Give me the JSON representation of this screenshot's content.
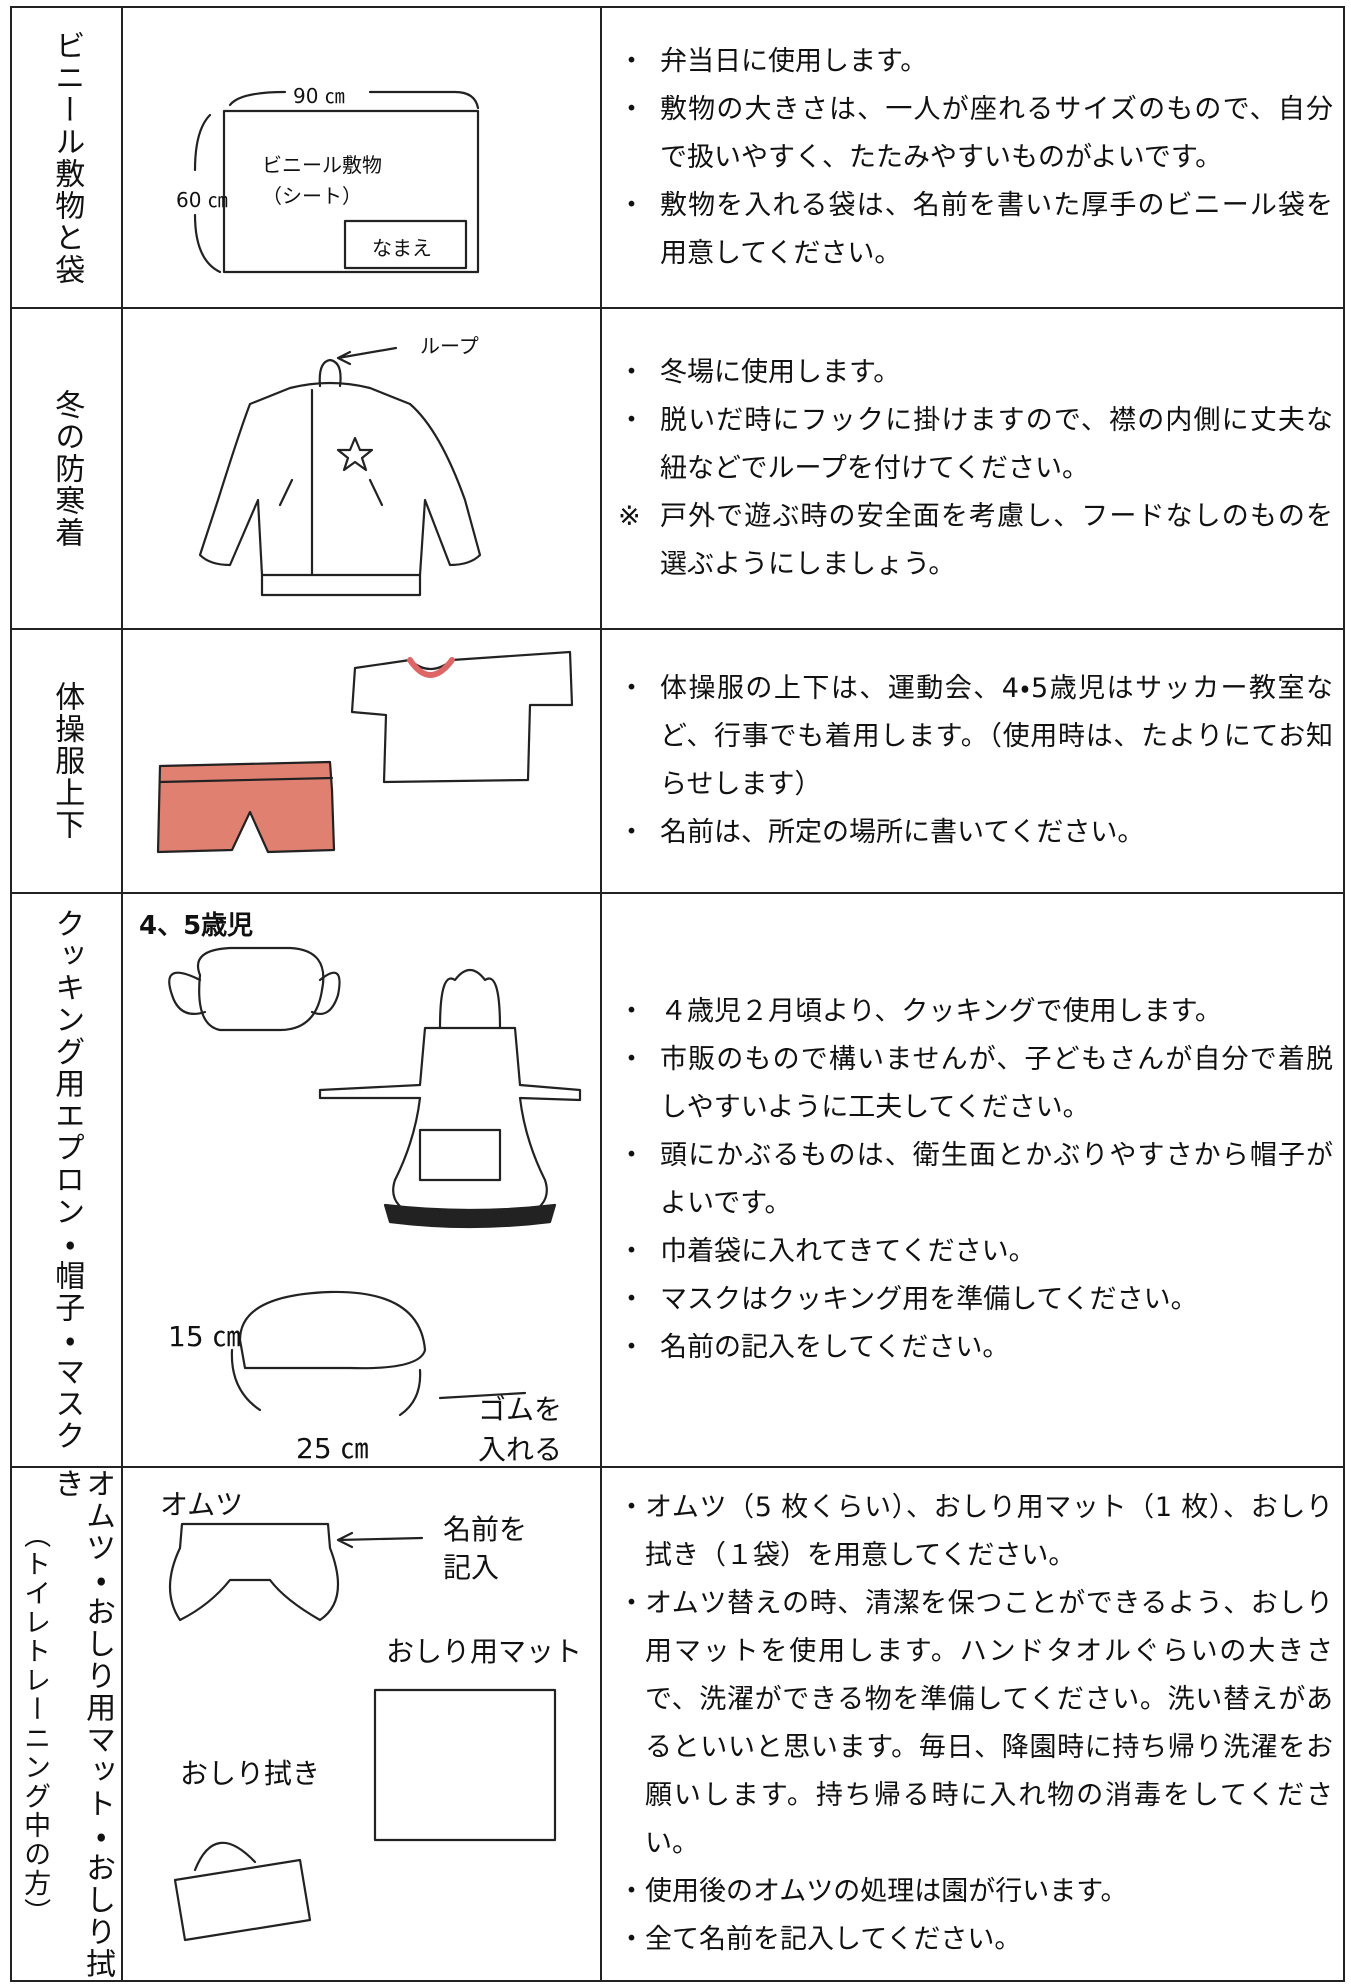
{
  "rows": [
    {
      "label": "ビニール敷物と袋",
      "illustration": {
        "labels": [
          "90 ㎝",
          "60 ㎝",
          "ビニール敷物",
          "（シート）",
          "なまえ"
        ]
      },
      "items": [
        {
          "mark": "・",
          "text": "弁当日に使用します。"
        },
        {
          "mark": "・",
          "text": "敷物の大きさは、一人が座れるサイズのもので、自分で扱いやすく、たたみやすいものがよいです。"
        },
        {
          "mark": "・",
          "text": "敷物を入れる袋は、名前を書いた厚手のビニール袋を用意してください。"
        }
      ]
    },
    {
      "label": "冬の防寒着",
      "illustration": {
        "labels": [
          "ループ"
        ]
      },
      "items": [
        {
          "mark": "・",
          "text": "冬場に使用します。"
        },
        {
          "mark": "・",
          "text": "脱いだ時にフックに掛けますので、襟の内側に丈夫な紐などでループを付けてください。"
        },
        {
          "mark": "※",
          "text": "戸外で遊ぶ時の安全面を考慮し、フードなしのものを選ぶようにしましょう。"
        }
      ]
    },
    {
      "label": "体操服上下",
      "illustration": {
        "labels": []
      },
      "items": [
        {
          "mark": "・",
          "text": "体操服の上下は、運動会、4・5歳児はサッカー教室など、行事でも着用します。（使用時は、たよりにてお知らせします）"
        },
        {
          "mark": "・",
          "text": "名前は、所定の場所に書いてください。"
        }
      ]
    },
    {
      "label": "クッキング用エプロン・帽子・マスク",
      "illustration": {
        "labels": [
          "4、5歳児",
          "15 ㎝",
          "25 ㎝",
          "ゴムを",
          "入れる"
        ]
      },
      "items": [
        {
          "mark": "・",
          "text": "４歳児２月頃より、クッキングで使用します。"
        },
        {
          "mark": "・",
          "text": "市販のもので構いませんが、子どもさんが自分で着脱しやすいように工夫してください。"
        },
        {
          "mark": "・",
          "text": "頭にかぶるものは、衛生面とかぶりやすさから帽子がよいです。"
        },
        {
          "mark": "・",
          "text": "巾着袋に入れてきてください。"
        },
        {
          "mark": "・",
          "text": "マスクはクッキング用を準備してください。"
        },
        {
          "mark": "・",
          "text": "名前の記入をしてください。"
        }
      ]
    },
    {
      "label": "オムツ・おしり用マット・おしり拭き",
      "sublabel": "（トイレトレーニング中の方）",
      "illustration": {
        "labels": [
          "オムツ",
          "名前を",
          "記入",
          "おしり用マット",
          "おしり拭き"
        ]
      },
      "items": [
        {
          "mark": "・",
          "text": "オムツ（5 枚くらい）、おしり用マット（1 枚）、おしり拭き（１袋）を用意してください。"
        },
        {
          "mark": "・",
          "text": "オムツ替えの時、清潔を保つことができるよう、おしり用マットを使用します。ハンドタオルぐらいの大きさで、洗濯ができる物を準備してください。洗い替えがあるといいと思います。毎日、降園時に持ち帰り洗濯をお願いします。持ち帰る時に入れ物の消毒をしてください。"
        },
        {
          "mark": "・",
          "text": "使用後のオムツの処理は園が行います。"
        },
        {
          "mark": "・",
          "text": "全て名前を記入してください。"
        }
      ]
    }
  ]
}
